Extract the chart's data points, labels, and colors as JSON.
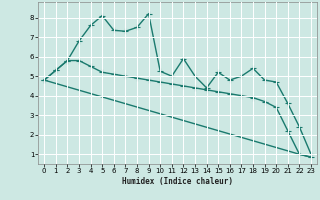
{
  "title": "",
  "xlabel": "Humidex (Indice chaleur)",
  "bg_color": "#cde8e3",
  "grid_color": "#ffffff",
  "line_color": "#1a7a6e",
  "xlim": [
    -0.5,
    23.5
  ],
  "ylim": [
    0.5,
    8.8
  ],
  "xticks": [
    0,
    1,
    2,
    3,
    4,
    5,
    6,
    7,
    8,
    9,
    10,
    11,
    12,
    13,
    14,
    15,
    16,
    17,
    18,
    19,
    20,
    21,
    22,
    23
  ],
  "yticks": [
    1,
    2,
    3,
    4,
    5,
    6,
    7,
    8
  ],
  "line1_x": [
    0,
    1,
    2,
    3,
    4,
    5,
    6,
    7,
    8,
    9,
    10,
    11,
    12,
    13,
    14,
    15,
    16,
    17,
    18,
    19,
    20,
    21,
    22,
    23
  ],
  "line1_y": [
    4.8,
    5.3,
    5.8,
    5.8,
    5.5,
    5.2,
    5.1,
    5.0,
    4.9,
    4.8,
    4.7,
    4.6,
    4.5,
    4.4,
    4.3,
    4.2,
    4.1,
    4.0,
    3.9,
    3.7,
    3.4,
    2.2,
    1.0,
    0.85
  ],
  "line2_x": [
    0,
    1,
    2,
    3,
    4,
    5,
    6,
    7,
    8,
    9,
    10,
    11,
    12,
    13,
    14,
    15,
    16,
    17,
    18,
    19,
    20,
    21,
    22,
    23
  ],
  "line2_y": [
    4.8,
    5.3,
    5.8,
    6.8,
    7.6,
    8.1,
    7.35,
    7.3,
    7.5,
    8.2,
    5.25,
    5.0,
    5.9,
    5.0,
    4.4,
    5.2,
    4.8,
    5.0,
    5.4,
    4.8,
    4.7,
    3.6,
    2.4,
    1.0
  ],
  "line3_x": [
    0,
    22,
    23
  ],
  "line3_y": [
    4.8,
    1.0,
    0.85
  ],
  "marker": "+",
  "markersize": 4,
  "linewidth": 1.0
}
